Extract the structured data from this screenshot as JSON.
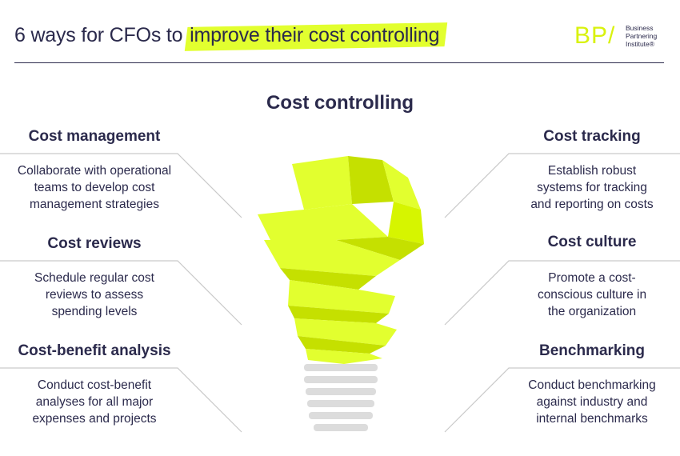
{
  "header": {
    "title_plain": "6 ways for CFOs to",
    "title_highlight": "improve their cost controlling"
  },
  "logo": {
    "mark": "BP/",
    "line1": "Business",
    "line2": "Partnering",
    "line3": "Institute®"
  },
  "center_title": "Cost controlling",
  "items": [
    {
      "title": "Cost management",
      "desc1": "Collaborate with operational",
      "desc2": "teams to develop cost",
      "desc3": "management strategies"
    },
    {
      "title": "Cost reviews",
      "desc1": "Schedule regular cost",
      "desc2": "reviews to assess",
      "desc3": "spending levels"
    },
    {
      "title": "Cost-benefit analysis",
      "desc1": "Conduct cost-benefit",
      "desc2": "analyses for all major",
      "desc3": "expenses and projects"
    },
    {
      "title": "Cost tracking",
      "desc1": "Establish robust",
      "desc2": "systems for tracking",
      "desc3": "and reporting on costs"
    },
    {
      "title": "Cost culture",
      "desc1": "Promote a cost-",
      "desc2": "conscious culture in",
      "desc3": "the organization"
    },
    {
      "title": "Benchmarking",
      "desc1": "Conduct benchmarking",
      "desc2": "against industry and",
      "desc3": "internal benchmarks"
    }
  ],
  "colors": {
    "accent": "#e2ff2f",
    "accent_dark": "#c5e000",
    "text": "#2b2a4c",
    "line": "#c9c9c9",
    "bulb_base": "#dcdcdc"
  }
}
